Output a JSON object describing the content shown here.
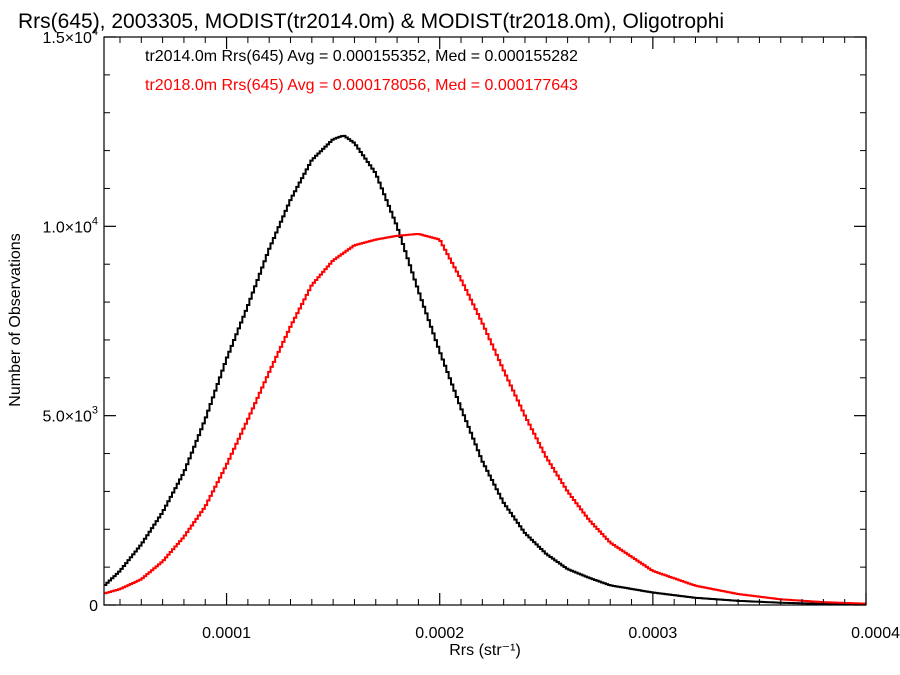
{
  "chart_data": {
    "type": "line",
    "title": "Rrs(645), 2003305, MODIST(tr2014.0m) & MODIST(tr2018.0m), Oligotrophi",
    "xlabel": "Rrs (str⁻¹)",
    "ylabel": "Number of Observations",
    "xlim": [
      4.25e-05,
      0.0004
    ],
    "ylim": [
      0,
      15000
    ],
    "x_ticks": [
      {
        "value": 0.0001,
        "label": "0.0001"
      },
      {
        "value": 0.0002,
        "label": "0.0002"
      },
      {
        "value": 0.0003,
        "label": "0.0003"
      },
      {
        "value": 0.0004,
        "label": "0.0004"
      }
    ],
    "y_ticks": [
      {
        "value": 0,
        "mantissa": "0",
        "exponent": ""
      },
      {
        "value": 5000,
        "mantissa": "5.0×10",
        "exponent": "3"
      },
      {
        "value": 10000,
        "mantissa": "1.0×10",
        "exponent": "4"
      },
      {
        "value": 15000,
        "mantissa": "1.5×10",
        "exponent": "4"
      }
    ],
    "grid": false,
    "step_histogram": true,
    "annotations": [
      {
        "text": "tr2014.0m Rrs(645) Avg = 0.000155352, Med = 0.000155282",
        "color": "#000000"
      },
      {
        "text": "tr2018.0m Rrs(645) Avg = 0.000178056, Med = 0.000177643",
        "color": "#ff0000"
      }
    ],
    "x": [
      4.25e-05,
      5e-05,
      6e-05,
      7e-05,
      8e-05,
      9e-05,
      0.0001,
      0.00011,
      0.00012,
      0.00013,
      0.00014,
      0.00015,
      0.000155,
      0.00016,
      0.00017,
      0.00018,
      0.00019,
      0.0002,
      0.00021,
      0.00022,
      0.00023,
      0.00024,
      0.00025,
      0.00026,
      0.00027,
      0.00028,
      0.0003,
      0.00032,
      0.00034,
      0.00036,
      0.00038,
      0.0004
    ],
    "series": [
      {
        "name": "tr2014.0m",
        "color": "#000000",
        "values": [
          500,
          900,
          1600,
          2450,
          3500,
          4900,
          6500,
          7900,
          9400,
          10700,
          11750,
          12300,
          12400,
          12200,
          11400,
          10000,
          8300,
          6700,
          5200,
          3800,
          2700,
          1900,
          1350,
          950,
          720,
          520,
          330,
          190,
          110,
          60,
          30,
          15
        ]
      },
      {
        "name": "tr2018.0m",
        "color": "#ff0000",
        "values": [
          300,
          420,
          680,
          1150,
          1800,
          2600,
          3700,
          4900,
          6150,
          7350,
          8450,
          9100,
          9300,
          9500,
          9650,
          9750,
          9800,
          9650,
          8600,
          7450,
          6200,
          5000,
          3900,
          3000,
          2250,
          1650,
          900,
          510,
          290,
          150,
          75,
          35
        ]
      }
    ]
  }
}
